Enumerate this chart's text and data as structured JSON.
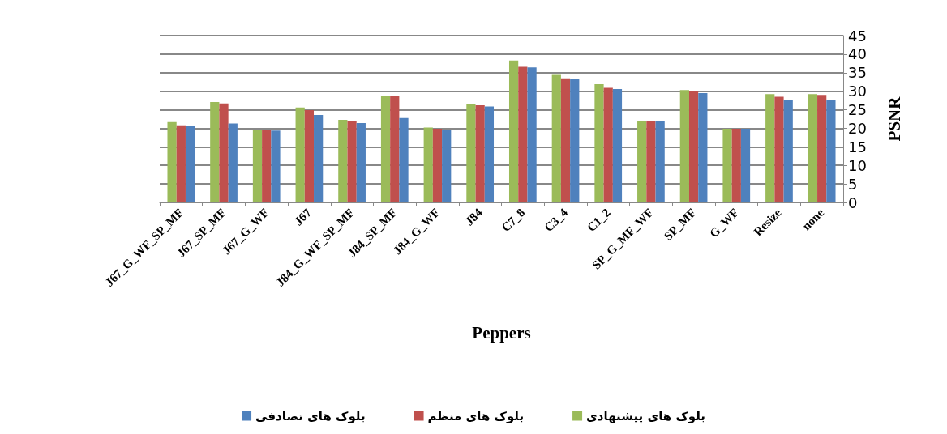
{
  "chart_data": {
    "type": "bar",
    "xlabel": "Peppers",
    "ylabel": "PSNR",
    "categories": [
      "J67_G_WF_SP_MF",
      "J67_SP_MF",
      "J67_G_WF",
      "J67",
      "J84_G_WF_SP_MF",
      "J84_SP_MF",
      "J84_G_WF",
      "J84",
      "C7_8",
      "C3_4",
      "C1_2",
      "SP_G_MF_WF",
      "SP_MF",
      "G_WF",
      "Resize",
      "none"
    ],
    "series": [
      {
        "name": "بلوک های پیشنهادی",
        "color": "#9bbb59",
        "values": [
          21.7,
          27.1,
          19.6,
          25.6,
          22.3,
          28.8,
          20.2,
          26.6,
          38.3,
          34.4,
          31.9,
          22.0,
          30.3,
          19.9,
          29.2,
          29.2
        ]
      },
      {
        "name": "بلوک های منظم",
        "color": "#c0504d",
        "values": [
          20.8,
          26.7,
          19.6,
          24.9,
          21.9,
          28.8,
          19.9,
          26.2,
          36.6,
          33.5,
          30.9,
          22.0,
          30.0,
          19.9,
          28.5,
          29.0
        ]
      },
      {
        "name": "بلوک های تصادفی",
        "color": "#4f81bd",
        "values": [
          20.7,
          21.3,
          19.4,
          23.6,
          21.4,
          22.8,
          19.5,
          25.9,
          36.4,
          33.4,
          30.6,
          22.0,
          29.5,
          19.9,
          27.5,
          27.5
        ]
      }
    ],
    "ylim": [
      0,
      45
    ],
    "yticks": [
      0,
      5,
      10,
      15,
      20,
      25,
      30,
      35,
      40,
      45
    ],
    "grid": "y",
    "legend": "bottom"
  }
}
